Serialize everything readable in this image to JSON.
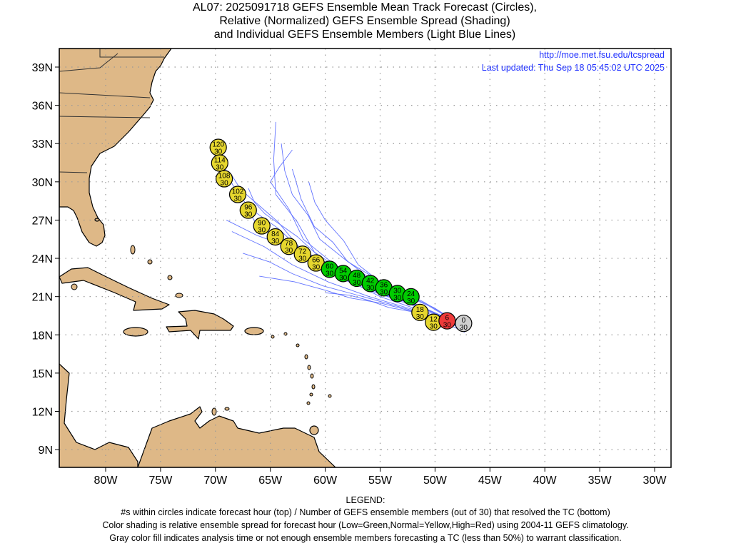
{
  "title": {
    "line1": "AL07: 2025091718 GEFS Ensemble Mean Track Forecast (Circles),",
    "line2": "Relative (Normalized) GEFS Ensemble Spread (Shading)",
    "line3": "and Individual GEFS Ensemble Members (Light Blue Lines)"
  },
  "info": {
    "url": "http://moe.met.fsu.edu/tcspread",
    "updated": "Last updated: Thu Sep 18 05:45:02 UTC 2025"
  },
  "axes": {
    "lat_labels": [
      "39N",
      "36N",
      "33N",
      "30N",
      "27N",
      "24N",
      "21N",
      "18N",
      "15N",
      "12N",
      "9N"
    ],
    "lat_values": [
      39,
      36,
      33,
      30,
      27,
      24,
      21,
      18,
      15,
      12,
      9
    ],
    "lon_labels": [
      "80W",
      "75W",
      "70W",
      "65W",
      "60W",
      "55W",
      "50W",
      "45W",
      "40W",
      "35W",
      "30W"
    ],
    "lon_values": [
      -80,
      -75,
      -70,
      -65,
      -60,
      -55,
      -50,
      -45,
      -40,
      -35,
      -30
    ]
  },
  "colors": {
    "land": "#deb887",
    "green": "#00cc00",
    "yellow": "#e6d72e",
    "red": "#ee3a3a",
    "gray": "#cfcfcf",
    "member": "#5a6cff",
    "info": "#2233ff"
  },
  "chart_data": {
    "type": "scatter",
    "title": "AL07: 2025091718 GEFS Ensemble Mean Track Forecast",
    "mean_track": [
      {
        "hour": "0",
        "members": "30",
        "lon": -47.4,
        "lat": 18.9,
        "spread": "gray"
      },
      {
        "hour": "6",
        "members": "30",
        "lon": -48.9,
        "lat": 19.1,
        "spread": "red"
      },
      {
        "hour": "12",
        "members": "30",
        "lon": -50.0,
        "lat": 19.0,
        "spread": "yellow"
      },
      {
        "hour": "18",
        "members": "30",
        "lon": -50.8,
        "lat": 19.5,
        "spread": "yellow"
      },
      {
        "hour": "24",
        "members": "30",
        "lon": -51.4,
        "lat": 20.4,
        "spread": "green"
      },
      {
        "hour": "30",
        "members": "30",
        "lon": -52.4,
        "lat": 20.6,
        "spread": "green"
      },
      {
        "hour": "36",
        "members": "30",
        "lon": -53.5,
        "lat": 21.0,
        "spread": "green"
      },
      {
        "hour": "42",
        "members": "30",
        "lon": -54.6,
        "lat": 21.3,
        "spread": "green"
      },
      {
        "hour": "48",
        "members": "30",
        "lon": -55.8,
        "lat": 21.7,
        "spread": "green"
      },
      {
        "hour": "54",
        "members": "30",
        "lon": -56.8,
        "lat": 22.0,
        "spread": "green"
      },
      {
        "hour": "60",
        "members": "30",
        "lon": -57.9,
        "lat": 22.3,
        "spread": "green"
      },
      {
        "hour": "66",
        "members": "30",
        "lon": -58.9,
        "lat": 22.7,
        "spread": "yellow"
      },
      {
        "hour": "72",
        "members": "30",
        "lon": -59.8,
        "lat": 23.2,
        "spread": "yellow"
      },
      {
        "hour": "78",
        "members": "30",
        "lon": -60.6,
        "lat": 23.6,
        "spread": "yellow"
      },
      {
        "hour": "84",
        "members": "30",
        "lon": -61.6,
        "lat": 24.2,
        "spread": "yellow"
      },
      {
        "hour": "90",
        "members": "30",
        "lon": -62.6,
        "lat": 24.9,
        "spread": "yellow"
      },
      {
        "hour": "96",
        "members": "30",
        "lon": -63.4,
        "lat": 25.7,
        "spread": "yellow"
      },
      {
        "hour": "102",
        "members": "30",
        "lon": -64.1,
        "lat": 26.6,
        "spread": "yellow"
      },
      {
        "hour": "108",
        "members": "30",
        "lon": -64.9,
        "lat": 27.4,
        "spread": "yellow"
      },
      {
        "hour": "114",
        "members": "30",
        "lon": -65.2,
        "lat": 28.3,
        "spread": "yellow"
      },
      {
        "hour": "120",
        "members": "30",
        "lon": -65.3,
        "lat": 29.2,
        "spread": "yellow"
      }
    ],
    "member_tracks": [
      [
        [
          -47.3,
          18.4
        ],
        [
          -55,
          21.0
        ],
        [
          -62,
          24.5
        ],
        [
          -67,
          28
        ],
        [
          -69.5,
          31.8
        ]
      ],
      [
        [
          -47.5,
          18.6
        ],
        [
          -55,
          21.4
        ],
        [
          -61,
          24.5
        ],
        [
          -64.5,
          29
        ],
        [
          -64.5,
          34.7
        ]
      ],
      [
        [
          -47.6,
          18.7
        ],
        [
          -56,
          21.8
        ],
        [
          -62,
          25.5
        ],
        [
          -65,
          30
        ],
        [
          -63,
          32.5
        ]
      ],
      [
        [
          -47.4,
          18.5
        ],
        [
          -56,
          21.0
        ],
        [
          -63,
          23.5
        ],
        [
          -68.5,
          26.1
        ]
      ],
      [
        [
          -47.5,
          18.5
        ],
        [
          -57,
          21.1
        ],
        [
          -63,
          22.8
        ],
        [
          -67.5,
          24.4
        ]
      ],
      [
        [
          -47.5,
          18.7
        ],
        [
          -54,
          21.6
        ],
        [
          -58,
          23.8
        ],
        [
          -61,
          26.5
        ],
        [
          -63,
          31
        ]
      ],
      [
        [
          -47.5,
          18.7
        ],
        [
          -53,
          21.3
        ],
        [
          -57,
          23.5
        ],
        [
          -60,
          27
        ],
        [
          -61.5,
          30.0
        ]
      ],
      [
        [
          -47.8,
          18.8
        ],
        [
          -56,
          21.6
        ],
        [
          -62.5,
          25
        ],
        [
          -66.5,
          28.5
        ],
        [
          -68.5,
          30.5
        ]
      ],
      [
        [
          -47.4,
          18.5
        ],
        [
          -55,
          20.5
        ],
        [
          -60,
          21.5
        ],
        [
          -66,
          22.6
        ]
      ],
      [
        [
          -47.5,
          18.6
        ],
        [
          -54,
          21.0
        ],
        [
          -60,
          23.7
        ],
        [
          -65.5,
          27.5
        ],
        [
          -67,
          29.5
        ]
      ],
      [
        [
          -47.6,
          18.8
        ],
        [
          -55,
          22.2
        ],
        [
          -60.5,
          25.5
        ],
        [
          -63,
          29
        ],
        [
          -64,
          33
        ]
      ],
      [
        [
          -47.5,
          18.6
        ],
        [
          -56,
          21.5
        ],
        [
          -62,
          24
        ],
        [
          -66,
          26.5
        ],
        [
          -66.8,
          28
        ]
      ],
      [
        [
          -47.3,
          18.2
        ],
        [
          -52,
          19.8
        ],
        [
          -56,
          20.7
        ],
        [
          -60,
          21.3
        ]
      ],
      [
        [
          -47.2,
          18.3
        ],
        [
          -52,
          20.5
        ],
        [
          -57,
          22.0
        ],
        [
          -63,
          24.8
        ],
        [
          -69,
          27.0
        ]
      ]
    ],
    "xlim": [
      -84.2,
      -28.4
    ],
    "ylim": [
      7.8,
      40.4
    ]
  },
  "legend": {
    "heading": "LEGEND:",
    "line1": "#s within circles indicate forecast hour (top) / Number of GEFS ensemble members (out of 30) that resolved the TC (bottom)",
    "line2": "Color shading is relative ensemble spread for forecast hour (Low=Green,Normal=Yellow,High=Red) using 2004-11 GEFS climatology.",
    "line3": "Gray color fill indicates analysis time or not enough ensemble members forecasting a TC (less than 50%) to warrant classification."
  }
}
